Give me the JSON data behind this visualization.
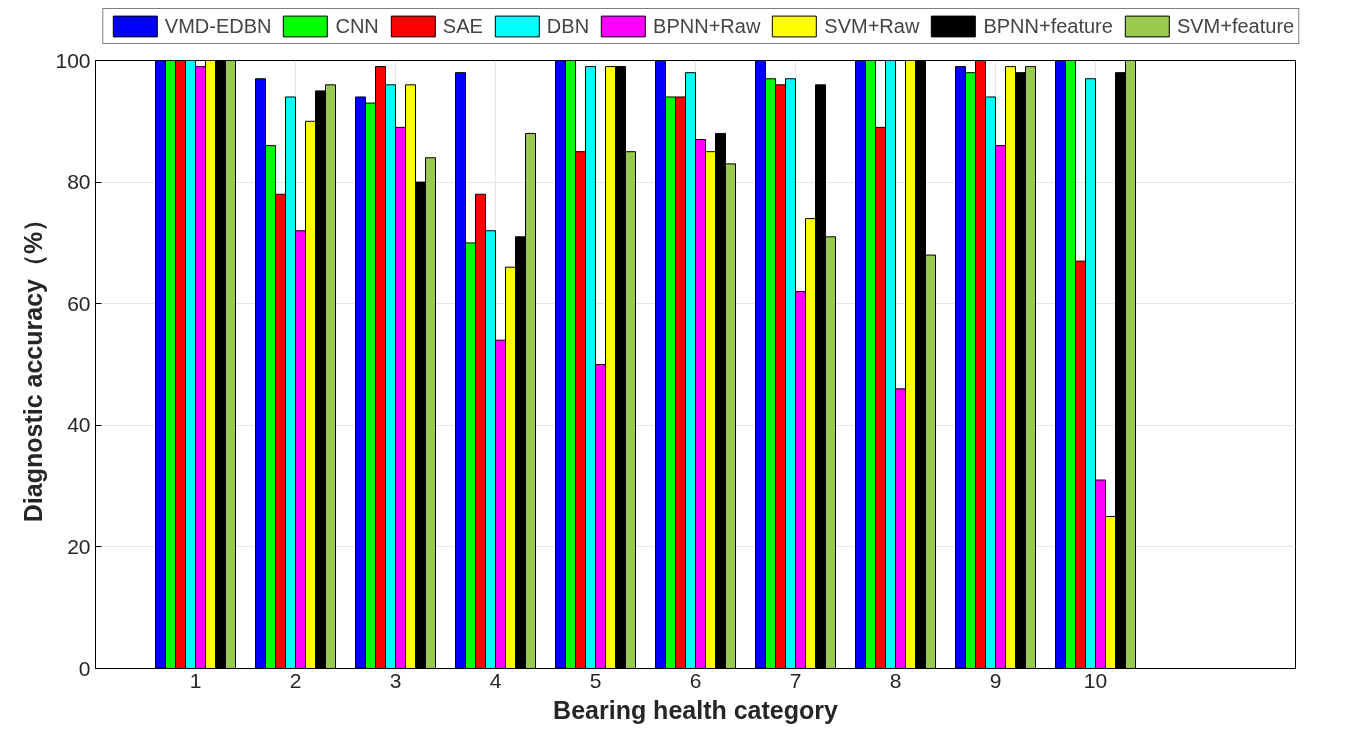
{
  "chart_data": {
    "type": "bar",
    "xlabel": "Bearing health category",
    "ylabel": "Diagnostic accuracy（%）",
    "x": [
      1,
      2,
      3,
      4,
      5,
      6,
      7,
      8,
      9,
      10
    ],
    "xlim": [
      0,
      12
    ],
    "xticks": [
      1,
      2,
      3,
      4,
      5,
      6,
      7,
      8,
      9,
      10
    ],
    "ylim": [
      0,
      100
    ],
    "yticks": [
      0,
      20,
      40,
      60,
      80,
      100
    ],
    "grid": true,
    "legend": "top",
    "series": [
      {
        "name": "VMD-EDBN",
        "color": "#0000ff",
        "values": [
          100,
          97,
          94,
          98,
          100,
          100,
          100,
          100,
          99,
          100
        ]
      },
      {
        "name": "CNN",
        "color": "#00ff00",
        "values": [
          100,
          86,
          93,
          70,
          100,
          94,
          97,
          100,
          98,
          100
        ]
      },
      {
        "name": "SAE",
        "color": "#ff0000",
        "values": [
          100,
          78,
          99,
          78,
          85,
          94,
          96,
          89,
          100,
          67
        ]
      },
      {
        "name": "DBN",
        "color": "#00ffff",
        "values": [
          100,
          94,
          96,
          72,
          99,
          98,
          97,
          100,
          94,
          97
        ]
      },
      {
        "name": "BPNN+Raw",
        "color": "#ff00ff",
        "values": [
          99,
          72,
          89,
          54,
          50,
          87,
          62,
          46,
          86,
          31
        ]
      },
      {
        "name": "SVM+Raw",
        "color": "#ffff00",
        "values": [
          100,
          90,
          96,
          66,
          99,
          85,
          74,
          100,
          99,
          25
        ]
      },
      {
        "name": "BPNN+feature",
        "color": "#000000",
        "values": [
          100,
          95,
          80,
          71,
          99,
          88,
          96,
          100,
          98,
          98
        ]
      },
      {
        "name": "SVM+feature",
        "color": "#99c94d",
        "values": [
          100,
          96,
          84,
          88,
          85,
          83,
          71,
          68,
          99,
          100
        ]
      }
    ]
  }
}
